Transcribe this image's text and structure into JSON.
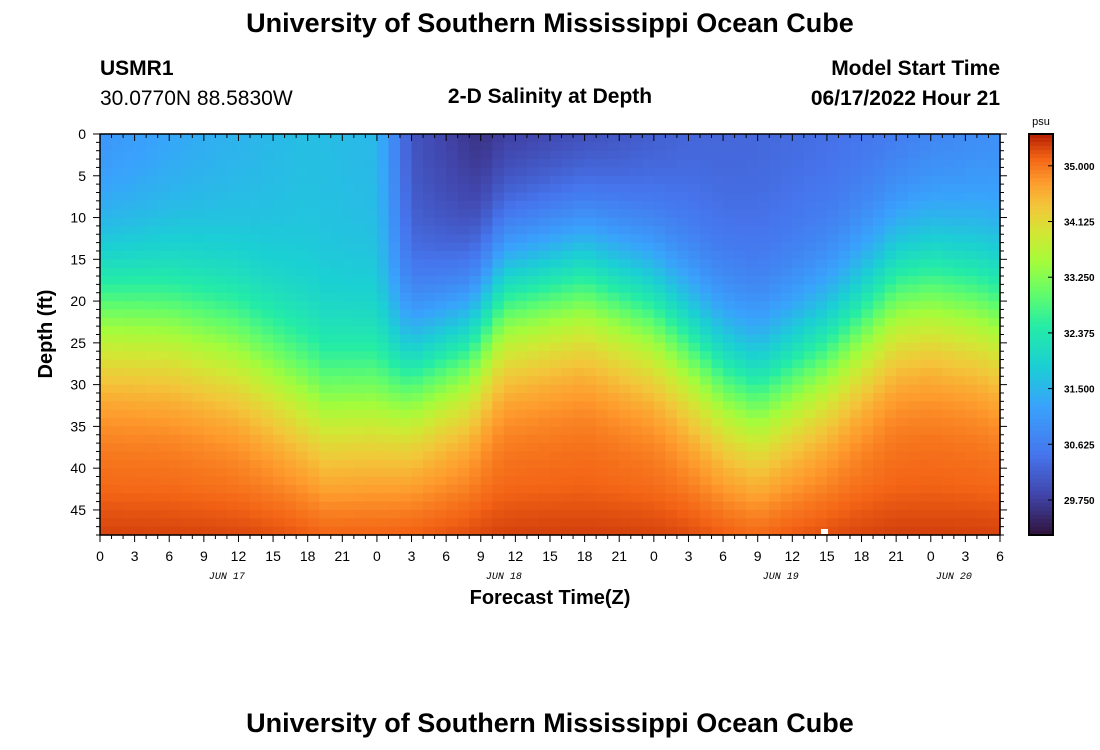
{
  "header": {
    "title": "University of Southern Mississippi Ocean Cube",
    "station": "USMR1",
    "location": "30.0770N  88.5830W",
    "subtitle": "2-D Salinity at Depth",
    "model_label": "Model Start Time",
    "model_time": "06/17/2022 Hour 21"
  },
  "footer": {
    "title": "University of Southern Mississippi Ocean Cube"
  },
  "chart_data": {
    "type": "heatmap",
    "title": "2-D Salinity at Depth",
    "xlabel": "Forecast Time(Z)",
    "ylabel": "Depth (ft)",
    "x_range_hours": [
      0,
      78
    ],
    "x_tick_labels": [
      "0",
      "3",
      "6",
      "9",
      "12",
      "15",
      "18",
      "21",
      "0",
      "3",
      "6",
      "9",
      "12",
      "15",
      "18",
      "21",
      "0",
      "3",
      "6",
      "9",
      "12",
      "15",
      "18",
      "21",
      "0",
      "3",
      "6"
    ],
    "date_labels": [
      {
        "label": "JUN 17",
        "hour": 11
      },
      {
        "label": "JUN 18",
        "hour": 35
      },
      {
        "label": "JUN 19",
        "hour": 59
      },
      {
        "label": "JUN 20",
        "hour": 74
      }
    ],
    "ylim": [
      0,
      48
    ],
    "y_ticks": [
      0,
      5,
      10,
      15,
      20,
      25,
      30,
      35,
      40,
      45
    ],
    "colorbar": {
      "unit": "psu",
      "min": 29.2,
      "max": 35.5,
      "ticks": [
        "35.000",
        "34.125",
        "33.250",
        "32.375",
        "31.500",
        "30.625",
        "29.750"
      ],
      "tick_values": [
        35.0,
        34.125,
        33.25,
        32.375,
        31.5,
        30.625,
        29.75
      ]
    },
    "surface_salinity": {
      "hours": [
        0,
        9,
        18,
        24,
        27,
        33,
        42,
        51,
        60,
        69,
        78
      ],
      "values": [
        30.9,
        31.3,
        31.6,
        31.5,
        30.0,
        29.5,
        29.7,
        30.2,
        30.3,
        30.4,
        30.8
      ]
    },
    "halocline_depth_ft": {
      "hours": [
        0,
        6,
        12,
        19.5,
        24,
        27,
        32,
        35,
        42,
        48,
        54,
        57,
        63,
        69,
        72,
        76,
        78
      ],
      "values": [
        21,
        22,
        25,
        32,
        31.5,
        29,
        25,
        19,
        17,
        21,
        29,
        31,
        26,
        18.5,
        18,
        19.5,
        21
      ]
    },
    "deep_salinity": 35.2,
    "bottom_salinity": 35.35
  }
}
